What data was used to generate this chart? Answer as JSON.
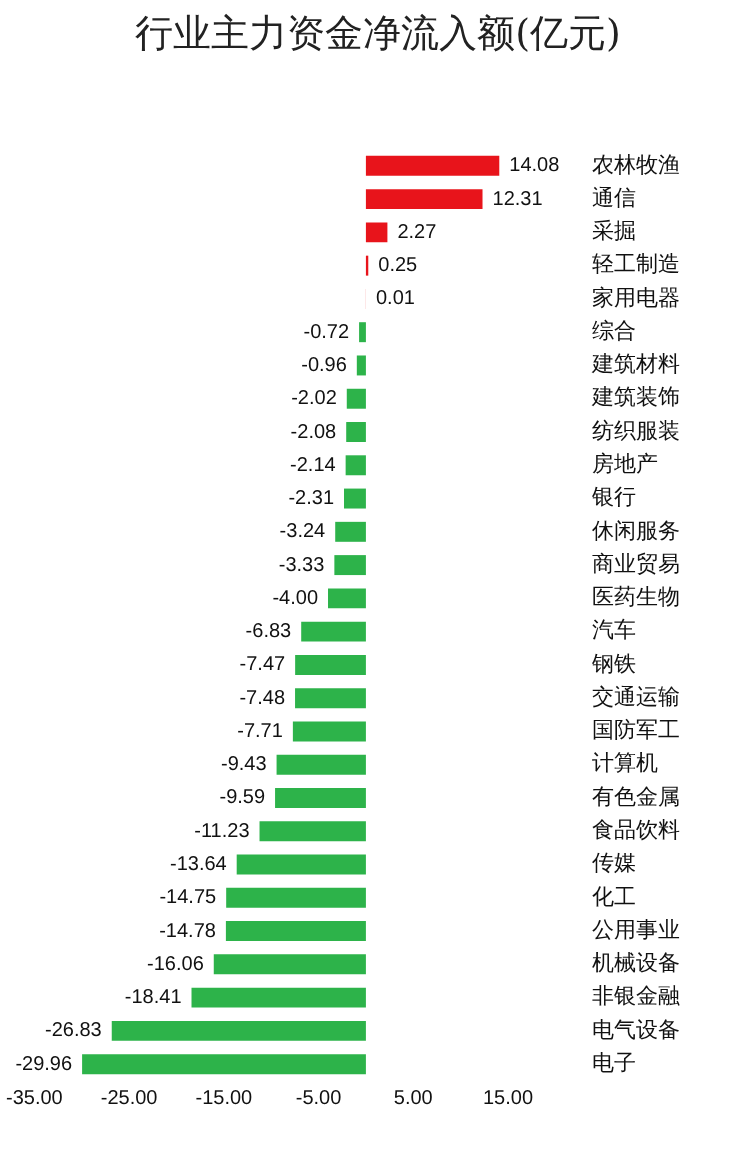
{
  "chart_data": {
    "type": "bar",
    "title": "行业主力资金净流入额(亿元)",
    "orientation": "horizontal",
    "categories": [
      "农林牧渔",
      "通信",
      "采掘",
      "轻工制造",
      "家用电器",
      "综合",
      "建筑材料",
      "建筑装饰",
      "纺织服装",
      "房地产",
      "银行",
      "休闲服务",
      "商业贸易",
      "医药生物",
      "汽车",
      "钢铁",
      "交通运输",
      "国防军工",
      "计算机",
      "有色金属",
      "食品饮料",
      "传媒",
      "化工",
      "公用事业",
      "机械设备",
      "非银金融",
      "电气设备",
      "电子"
    ],
    "values": [
      14.08,
      12.31,
      2.27,
      0.25,
      0.01,
      -0.72,
      -0.96,
      -2.02,
      -2.08,
      -2.14,
      -2.31,
      -3.24,
      -3.33,
      -4.0,
      -6.83,
      -7.47,
      -7.48,
      -7.71,
      -9.43,
      -9.59,
      -11.23,
      -13.64,
      -14.75,
      -14.78,
      -16.06,
      -18.41,
      -26.83,
      -29.96
    ],
    "value_labels": [
      "14.08",
      "12.31",
      "2.27",
      "0.25",
      "0.01",
      "-0.72",
      "-0.96",
      "-2.02",
      "-2.08",
      "-2.14",
      "-2.31",
      "-3.24",
      "-3.33",
      "-4.00",
      "-6.83",
      "-7.47",
      "-7.48",
      "-7.71",
      "-9.43",
      "-9.59",
      "-11.23",
      "-13.64",
      "-14.75",
      "-14.78",
      "-16.06",
      "-18.41",
      "-26.83",
      "-29.96"
    ],
    "colors": [
      "#e8141b",
      "#e8141b",
      "#e8141b",
      "#e8141b",
      "#e8141b",
      "#2db34a",
      "#2db34a",
      "#2db34a",
      "#2db34a",
      "#2db34a",
      "#2db34a",
      "#2db34a",
      "#2db34a",
      "#2db34a",
      "#2db34a",
      "#2db34a",
      "#2db34a",
      "#2db34a",
      "#2db34a",
      "#2db34a",
      "#2db34a",
      "#2db34a",
      "#2db34a",
      "#2db34a",
      "#2db34a",
      "#2db34a",
      "#2db34a",
      "#2db34a"
    ],
    "xlim": [
      -35,
      15
    ],
    "xticks": [
      {
        "value": -35,
        "label": "-35.00"
      },
      {
        "value": -25,
        "label": "-25.00"
      },
      {
        "value": -15,
        "label": "-15.00"
      },
      {
        "value": -5,
        "label": "-5.00"
      },
      {
        "value": 5,
        "label": "5.00"
      },
      {
        "value": 15,
        "label": "15.00"
      }
    ],
    "grid": false
  }
}
